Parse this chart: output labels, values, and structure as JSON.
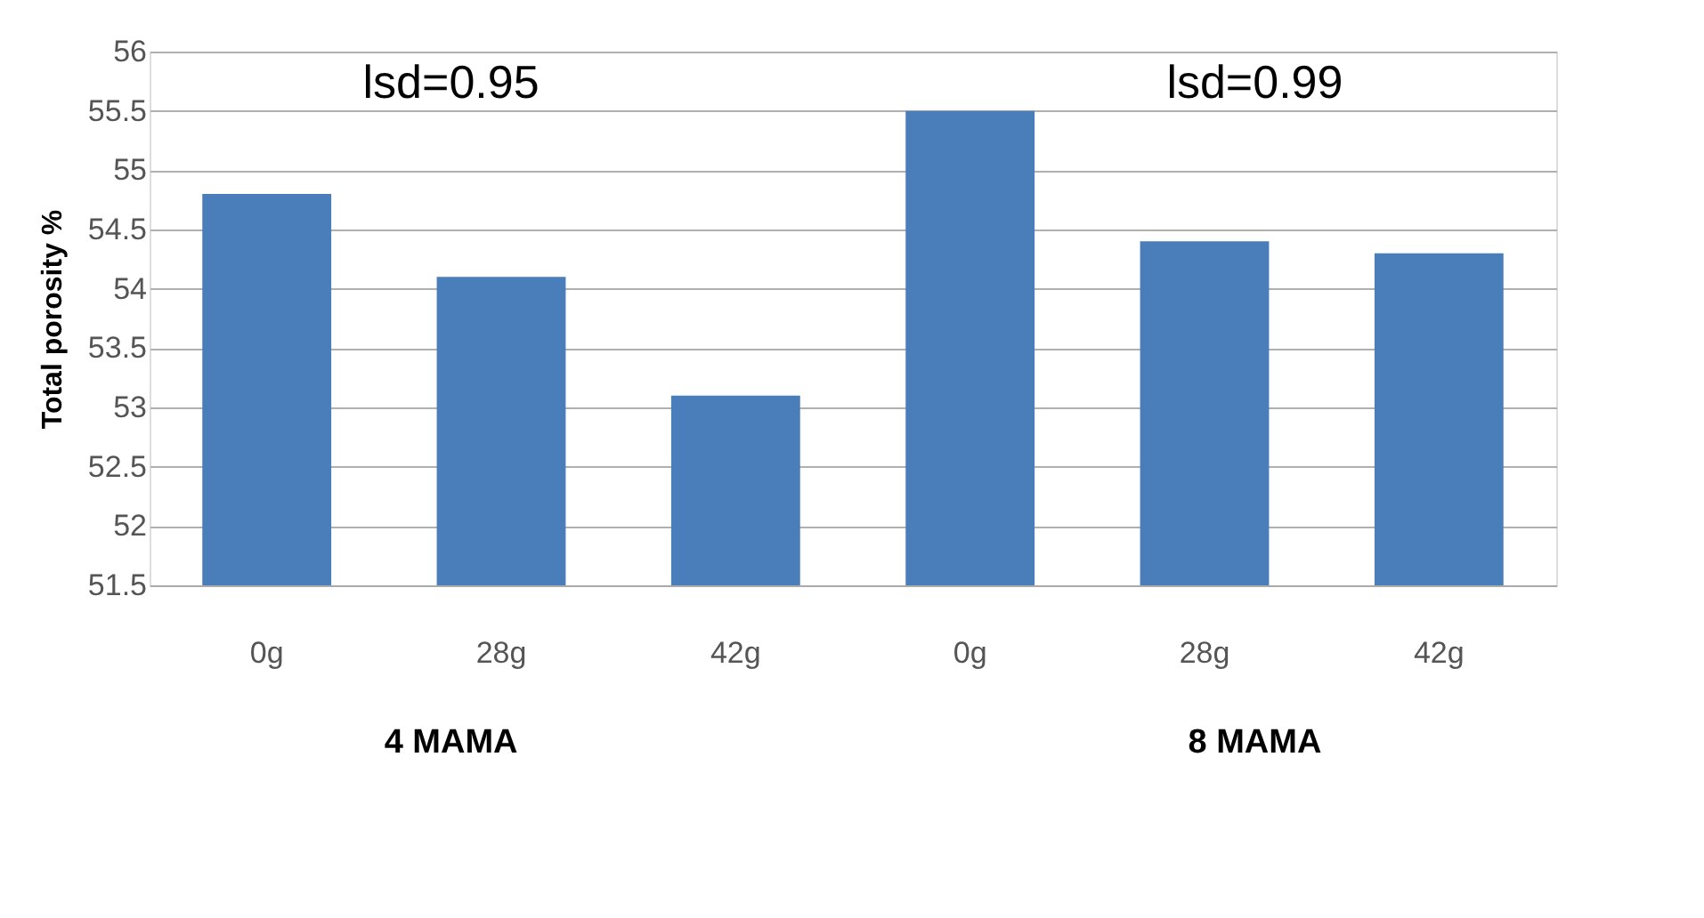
{
  "chart_data": {
    "type": "bar",
    "ylabel": "Total porosity %",
    "categories": [
      "0g",
      "28g",
      "42g",
      null,
      "0g",
      "28g",
      "42g"
    ],
    "values": [
      54.8,
      54.1,
      53.1,
      null,
      55.5,
      54.4,
      54.3
    ],
    "color": "#4a7ebb",
    "ylim": [
      51.5,
      56
    ],
    "yticks": [
      51.5,
      52,
      52.5,
      53,
      53.5,
      54,
      54.5,
      55,
      55.5,
      56
    ],
    "grid": "y",
    "annotations": [
      "lsd=0.95",
      "lsd=0.99",
      "4 MAMA",
      "8 MAMA"
    ]
  }
}
